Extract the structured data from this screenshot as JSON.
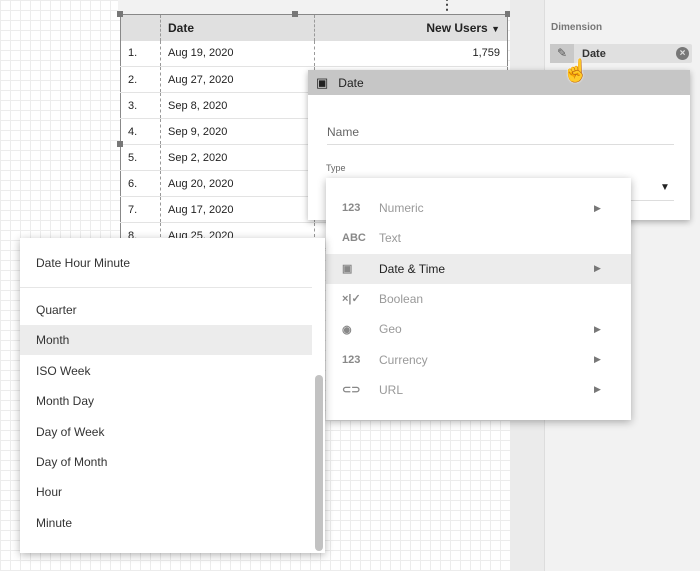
{
  "table": {
    "headers": [
      "",
      "Date",
      "New Users"
    ],
    "sort_icon": "caret-down",
    "rows": [
      [
        "1.",
        "Aug 19, 2020",
        "1,759"
      ],
      [
        "2.",
        "Aug 27, 2020",
        ""
      ],
      [
        "3.",
        "Sep 8, 2020",
        ""
      ],
      [
        "4.",
        "Sep 9, 2020",
        ""
      ],
      [
        "5.",
        "Sep 2, 2020",
        ""
      ],
      [
        "6.",
        "Aug 20, 2020",
        ""
      ],
      [
        "7.",
        "Aug 17, 2020",
        ""
      ],
      [
        "8.",
        "Aug 25, 2020",
        ""
      ]
    ]
  },
  "panel": {
    "dimension_label": "Dimension",
    "chip_label": "Date"
  },
  "dialog": {
    "title": "Date",
    "name_placeholder": "Name",
    "type_label": "Type"
  },
  "type_menu": [
    {
      "icon": "123",
      "label": "Numeric",
      "submenu": true
    },
    {
      "icon": "ABC",
      "label": "Text",
      "submenu": false
    },
    {
      "icon": "▣",
      "label": "Date & Time",
      "submenu": true,
      "highlighted": true
    },
    {
      "icon": "×|✓",
      "label": "Boolean",
      "submenu": false
    },
    {
      "icon": "◉",
      "label": "Geo",
      "submenu": true
    },
    {
      "icon": "123",
      "label": "Currency",
      "submenu": true
    },
    {
      "icon": "⊂⊃",
      "label": "URL",
      "submenu": true
    }
  ],
  "date_submenu": {
    "top": "Date Hour Minute",
    "items": [
      "Quarter",
      "Month",
      "ISO Week",
      "Month Day",
      "Day of Week",
      "Day of Month",
      "Hour",
      "Minute"
    ],
    "highlighted": "Month"
  }
}
